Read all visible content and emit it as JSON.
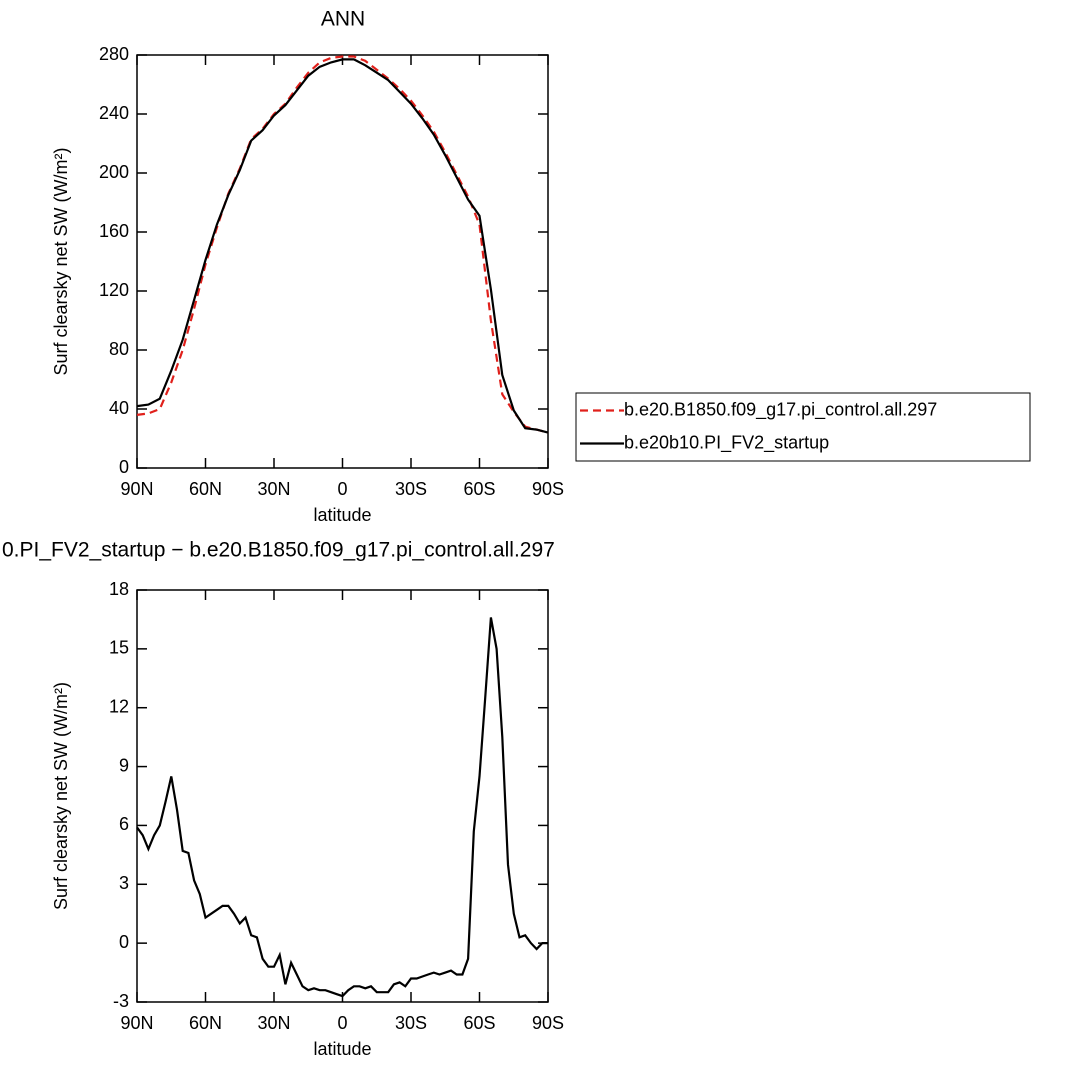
{
  "chart_data": [
    {
      "type": "line",
      "title": "ANN",
      "xlabel": "latitude",
      "ylabel": "Surf clearsky net SW (W/m²)",
      "x": [
        90,
        85,
        80,
        75,
        70,
        65,
        60,
        55,
        50,
        45,
        40,
        35,
        30,
        25,
        20,
        15,
        10,
        5,
        0,
        -5,
        -10,
        -15,
        -20,
        -25,
        -30,
        -35,
        -40,
        -45,
        -50,
        -55,
        -60,
        -65,
        -70,
        -75,
        -80,
        -85,
        -90
      ],
      "xlim": [
        90,
        -90
      ],
      "xticks": [
        {
          "value": 90,
          "label": "90N"
        },
        {
          "value": 60,
          "label": "60N"
        },
        {
          "value": 30,
          "label": "30N"
        },
        0,
        {
          "value": -30,
          "label": "30S"
        },
        {
          "value": -60,
          "label": "60S"
        },
        {
          "value": -90,
          "label": "90S"
        }
      ],
      "ylim": [
        0,
        280
      ],
      "yticks": [
        0,
        40,
        80,
        120,
        160,
        200,
        240,
        280
      ],
      "legend": "right",
      "series": [
        {
          "name": "b.e20.B1850.f09_g17.pi_control.all.297",
          "color": "#e0201b",
          "dashed": true,
          "values": [
            36,
            37,
            40,
            58,
            80,
            108,
            138,
            163,
            186,
            203,
            223,
            230,
            240,
            247,
            258,
            268,
            275,
            278,
            279,
            279,
            276,
            270,
            264,
            257,
            249,
            239,
            228,
            214,
            199,
            184,
            165,
            100,
            50,
            38,
            28,
            26,
            24
          ]
        },
        {
          "name": "b.e20b10.PI_FV2_startup",
          "color": "#000000",
          "dashed": false,
          "values": [
            42,
            43,
            47,
            66,
            87,
            114,
            141,
            165,
            185,
            202,
            222,
            229,
            239,
            246,
            256,
            266,
            272,
            275,
            277,
            277,
            273,
            268,
            263,
            255,
            247,
            237,
            226,
            212,
            197,
            182,
            171,
            121,
            63,
            39,
            27,
            26,
            24
          ]
        }
      ]
    },
    {
      "type": "line",
      "title": "0.PI_FV2_startup − b.e20.B1850.f09_g17.pi_control.all.297",
      "xlabel": "latitude",
      "ylabel": "Surf clearsky net SW (W/m²)",
      "x": [
        90,
        87.5,
        85,
        82.5,
        80,
        77.5,
        75,
        72.5,
        70,
        67.5,
        65,
        62.5,
        60,
        57.5,
        55,
        52.5,
        50,
        47.5,
        45,
        42.5,
        40,
        37.5,
        35,
        32.5,
        30,
        27.5,
        25,
        22.5,
        20,
        17.5,
        15,
        12.5,
        10,
        7.5,
        5,
        2.5,
        0,
        -2.5,
        -5,
        -7.5,
        -10,
        -12.5,
        -15,
        -17.5,
        -20,
        -22.5,
        -25,
        -27.5,
        -30,
        -32.5,
        -35,
        -37.5,
        -40,
        -42.5,
        -45,
        -47.5,
        -50,
        -52.5,
        -55,
        -57.5,
        -60,
        -62.5,
        -65,
        -67.5,
        -70,
        -72.5,
        -75,
        -77.5,
        -80,
        -82.5,
        -85,
        -87.5,
        -90
      ],
      "xlim": [
        90,
        -90
      ],
      "xticks": [
        {
          "value": 90,
          "label": "90N"
        },
        {
          "value": 60,
          "label": "60N"
        },
        {
          "value": 30,
          "label": "30N"
        },
        0,
        {
          "value": -30,
          "label": "30S"
        },
        {
          "value": -60,
          "label": "60S"
        },
        {
          "value": -90,
          "label": "90S"
        }
      ],
      "ylim": [
        -3,
        18
      ],
      "yticks": [
        -3,
        0,
        3,
        6,
        9,
        12,
        15,
        18
      ],
      "series": [
        {
          "color": "#000000",
          "dashed": false,
          "values": [
            5.9,
            5.5,
            4.8,
            5.5,
            6.0,
            7.2,
            8.5,
            6.8,
            4.7,
            4.6,
            3.2,
            2.5,
            1.3,
            1.5,
            1.7,
            1.9,
            1.9,
            1.5,
            1.0,
            1.3,
            0.4,
            0.3,
            -0.8,
            -1.2,
            -1.2,
            -0.6,
            -2.1,
            -1.0,
            -1.6,
            -2.2,
            -2.4,
            -2.3,
            -2.4,
            -2.4,
            -2.5,
            -2.6,
            -2.7,
            -2.4,
            -2.2,
            -2.2,
            -2.3,
            -2.2,
            -2.5,
            -2.5,
            -2.5,
            -2.1,
            -2.0,
            -2.2,
            -1.8,
            -1.8,
            -1.7,
            -1.6,
            -1.5,
            -1.6,
            -1.5,
            -1.4,
            -1.6,
            -1.6,
            -0.8,
            5.7,
            8.5,
            12.5,
            16.6,
            15.0,
            10.5,
            4.0,
            1.5,
            0.3,
            0.4,
            0.0,
            -0.3,
            0.0,
            0.0
          ]
        }
      ]
    }
  ]
}
